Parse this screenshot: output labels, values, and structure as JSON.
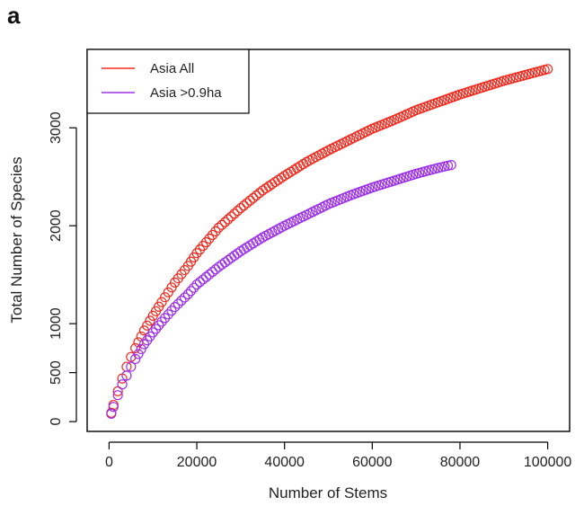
{
  "panel_label": "a",
  "chart_data": {
    "type": "scatter",
    "title": "",
    "xlabel": "Number of Stems",
    "ylabel": "Total Number of Species",
    "xlim": [
      -5000,
      105000
    ],
    "ylim": [
      -100,
      3800
    ],
    "x_ticks": [
      0,
      20000,
      40000,
      60000,
      80000,
      100000
    ],
    "x_tick_labels": [
      "0",
      "20000",
      "40000",
      "60000",
      "80000",
      "100000"
    ],
    "y_ticks": [
      0,
      500,
      1000,
      2000,
      3000
    ],
    "y_tick_labels": [
      "0",
      "500",
      "1000",
      "2000",
      "3000"
    ],
    "grid": false,
    "legend_position": "top-left",
    "series": [
      {
        "name": "Asia All",
        "color": "#f02a1e",
        "marker": "open-circle",
        "x": [
          500,
          1000,
          2000,
          3000,
          4000,
          5000,
          6000,
          8000,
          10000,
          12000,
          15000,
          18000,
          20000,
          25000,
          30000,
          35000,
          40000,
          45000,
          50000,
          55000,
          60000,
          65000,
          70000,
          75000,
          80000,
          85000,
          90000,
          95000,
          100000
        ],
        "y": [
          90,
          170,
          310,
          440,
          560,
          660,
          750,
          930,
          1080,
          1220,
          1420,
          1590,
          1720,
          1980,
          2180,
          2360,
          2510,
          2650,
          2770,
          2880,
          2990,
          3080,
          3180,
          3260,
          3340,
          3410,
          3480,
          3540,
          3600
        ]
      },
      {
        "name": "Asia >0.9ha",
        "color": "#9b30e8",
        "marker": "open-circle",
        "x": [
          500,
          1000,
          2000,
          3000,
          4000,
          5000,
          6000,
          8000,
          10000,
          12000,
          15000,
          18000,
          20000,
          25000,
          30000,
          35000,
          40000,
          45000,
          50000,
          55000,
          60000,
          65000,
          70000,
          75000,
          78000
        ],
        "y": [
          80,
          150,
          270,
          380,
          470,
          560,
          640,
          790,
          910,
          1020,
          1170,
          1300,
          1400,
          1580,
          1740,
          1880,
          2000,
          2110,
          2220,
          2310,
          2390,
          2460,
          2530,
          2590,
          2620
        ]
      }
    ]
  }
}
